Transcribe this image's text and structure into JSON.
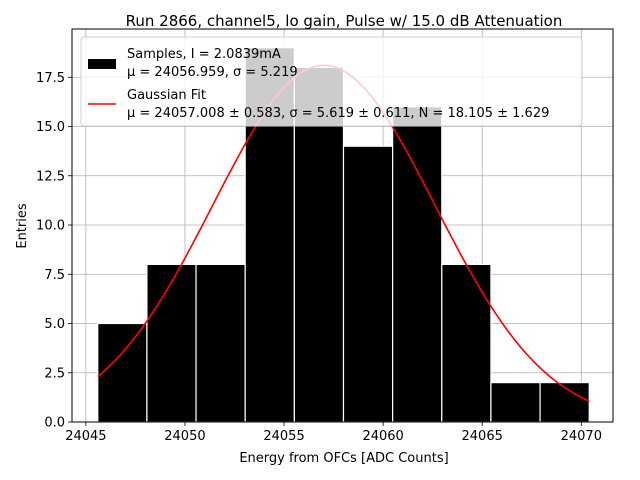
{
  "chart_data": {
    "type": "bar",
    "title": "Run 2866, channel5, lo gain, Pulse w/ 15.0 dB Attenuation",
    "xlabel": "Energy from OFCs [ADC Counts]",
    "ylabel": "Entries",
    "xlim": [
      24044.3,
      24071.6
    ],
    "ylim": [
      0,
      19.95
    ],
    "grid": true,
    "legend_position": "top-left",
    "x_ticks": [
      "24045",
      "24050",
      "24055",
      "24060",
      "24065",
      "24070"
    ],
    "x_tick_values": [
      24045,
      24050,
      24055,
      24060,
      24065,
      24070
    ],
    "y_ticks": [
      "0.0",
      "2.5",
      "5.0",
      "7.5",
      "10.0",
      "12.5",
      "15.0",
      "17.5"
    ],
    "y_tick_values": [
      0,
      2.5,
      5,
      7.5,
      10,
      12.5,
      15,
      17.5
    ],
    "histogram": {
      "bin_edges": [
        24045.6,
        24048.08,
        24050.56,
        24053.04,
        24055.52,
        24058.0,
        24060.48,
        24062.96,
        24065.44,
        24067.92,
        24070.4
      ],
      "counts": [
        5,
        8,
        8,
        19,
        18,
        14,
        16,
        8,
        2,
        2
      ],
      "color": "#000000",
      "edge_color": "#ffffff"
    },
    "fit": {
      "type": "gaussian",
      "mu": 24057.008,
      "sigma": 5.619,
      "N": 18.105,
      "x_range": [
        24045.6,
        24070.4
      ],
      "color": "#ff0000"
    },
    "series": [
      {
        "kind": "histogram",
        "label_line1": "Samples, I = 2.0839mA",
        "label_line2": "μ = 24056.959, σ = 5.219"
      },
      {
        "kind": "fit",
        "label_line1": "Gaussian Fit",
        "label_line2": "μ = 24057.008 ± 0.583, σ = 5.619 ± 0.611, N = 18.105 ± 1.629"
      }
    ]
  }
}
